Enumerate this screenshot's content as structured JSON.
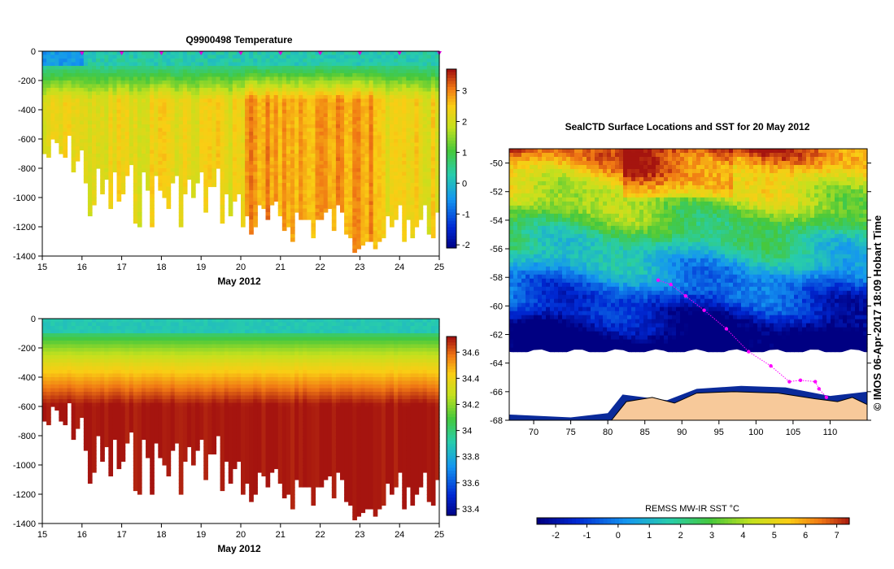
{
  "temperature_title": "Q9900498  Temperature",
  "month_label_top": "May 2012",
  "month_label_bottom": "May 2012",
  "map_title": "SealCTD Surface Locations and SST for 20 May 2012",
  "sst_cbar_label": "REMSS MW-IR SST °C",
  "side_label": "© IMOS 06-Apr-2017 18:09 Hobart Time",
  "colors": {
    "profile_marker": "#e000e0",
    "track": "#ff00ff",
    "land": "#f7c99a",
    "ice": "#ffffff"
  },
  "chart_data": [
    {
      "id": "temperature-section",
      "type": "heatmap",
      "title": "Q9900498  Temperature",
      "xlabel": "May 2012",
      "ylabel": "",
      "x_ticks": [
        "15",
        "16",
        "17",
        "18",
        "19",
        "20",
        "21",
        "22",
        "23",
        "24",
        "25"
      ],
      "y_ticks": [
        "0",
        "-200",
        "-400",
        "-600",
        "-800",
        "-1000",
        "-1200",
        "-1400"
      ],
      "xlim": [
        15,
        25
      ],
      "ylim": [
        -1400,
        0
      ],
      "colorbar_ticks": [
        "3",
        "2",
        "1",
        "0",
        "-1",
        "-2"
      ],
      "colorbar_range": [
        -2.1,
        3.7
      ],
      "surface_value": 0.3,
      "deep_value": 2.3,
      "profile_marker_days": [
        16,
        17,
        18,
        19,
        20,
        21,
        22,
        23,
        24,
        25
      ]
    },
    {
      "id": "salinity-section",
      "type": "heatmap",
      "title": "",
      "xlabel": "May 2012",
      "ylabel": "",
      "x_ticks": [
        "15",
        "16",
        "17",
        "18",
        "19",
        "20",
        "21",
        "22",
        "23",
        "24",
        "25"
      ],
      "y_ticks": [
        "0",
        "-200",
        "-400",
        "-600",
        "-800",
        "-1000",
        "-1200",
        "-1400"
      ],
      "xlim": [
        15,
        25
      ],
      "ylim": [
        -1400,
        0
      ],
      "colorbar_ticks": [
        "34.6",
        "34.4",
        "34.2",
        "34",
        "33.8",
        "33.6",
        "33.4"
      ],
      "colorbar_range": [
        33.35,
        34.72
      ],
      "surface_value": 33.9,
      "deep_value": 34.72
    },
    {
      "id": "sst-map",
      "type": "heatmap",
      "title": "SealCTD Surface Locations and SST for 20 May 2012",
      "x_ticks": [
        "70",
        "75",
        "80",
        "85",
        "90",
        "95",
        "100",
        "105",
        "110"
      ],
      "y_ticks": [
        "-50",
        "-52",
        "-54",
        "-56",
        "-58",
        "-60",
        "-62",
        "-64",
        "-66",
        "-68"
      ],
      "xlim": [
        66.7,
        115
      ],
      "ylim": [
        -68,
        -49
      ],
      "ice_edge_lat": -63.2,
      "colorbar_ticks": [
        "-2",
        "-1",
        "0",
        "1",
        "2",
        "3",
        "4",
        "5",
        "6",
        "7"
      ],
      "colorbar_range": [
        -2.6,
        7.4
      ],
      "colorbar_label": "REMSS MW-IR SST °C",
      "seal_track": [
        {
          "lon": 86.8,
          "lat": -58.2
        },
        {
          "lon": 88.5,
          "lat": -58.5
        },
        {
          "lon": 90.5,
          "lat": -59.3
        },
        {
          "lon": 93.0,
          "lat": -60.3
        },
        {
          "lon": 96.0,
          "lat": -61.6
        },
        {
          "lon": 99.0,
          "lat": -63.2
        },
        {
          "lon": 102.0,
          "lat": -64.2
        },
        {
          "lon": 104.5,
          "lat": -65.3
        },
        {
          "lon": 106.0,
          "lat": -65.2
        },
        {
          "lon": 108.0,
          "lat": -65.3
        },
        {
          "lon": 108.5,
          "lat": -65.8
        },
        {
          "lon": 109.5,
          "lat": -66.4
        }
      ]
    }
  ]
}
